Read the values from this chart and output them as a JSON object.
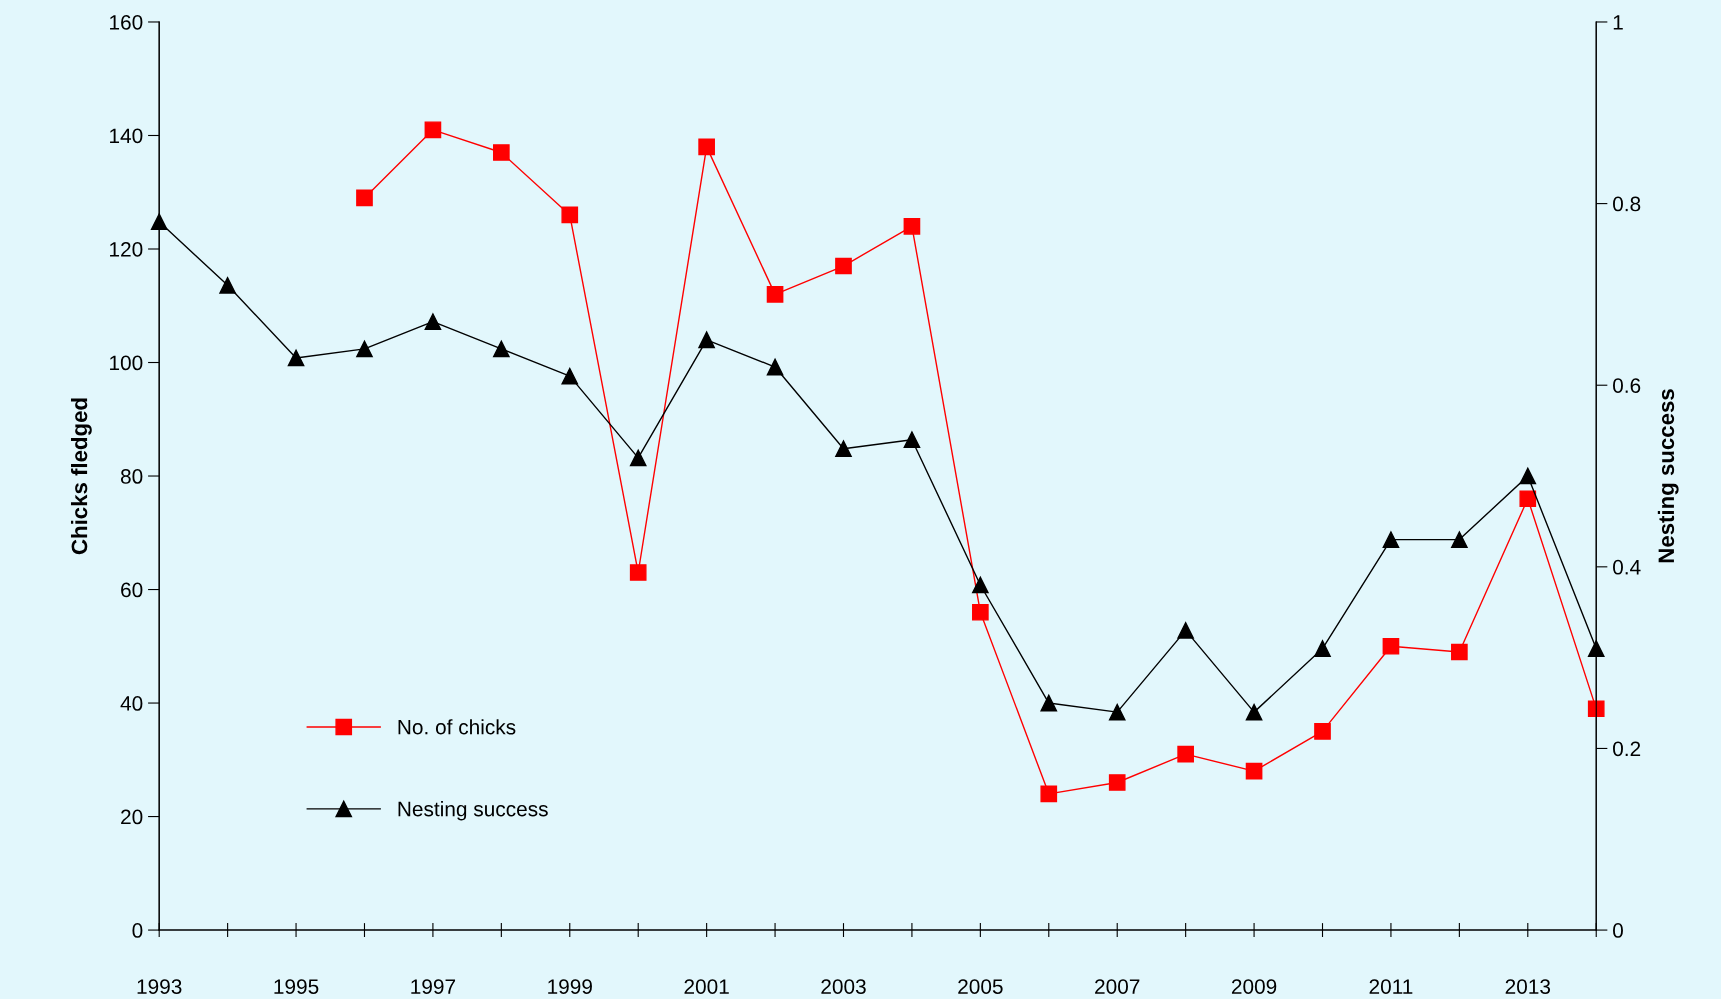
{
  "chart_data": {
    "type": "line",
    "ylabel": "Chicks fledged",
    "y2label": "Nesting success",
    "x": [
      1993,
      1994,
      1995,
      1996,
      1997,
      1998,
      1999,
      2000,
      2001,
      2002,
      2003,
      2004,
      2005,
      2006,
      2007,
      2008,
      2009,
      2010,
      2011,
      2012,
      2013,
      2014
    ],
    "series": [
      {
        "name": "No. of chicks",
        "color": "#ff0000",
        "marker": "square",
        "values": [
          null,
          null,
          null,
          129,
          141,
          137,
          126,
          63,
          138,
          112,
          117,
          124,
          56,
          24,
          26,
          31,
          28,
          35,
          50,
          49,
          76,
          39
        ]
      },
      {
        "name": "Nesting success",
        "color": "#000000",
        "marker": "triangle",
        "axis": "y2",
        "values": [
          0.78,
          0.71,
          0.63,
          0.64,
          0.67,
          0.64,
          0.61,
          0.52,
          0.65,
          0.62,
          0.53,
          0.54,
          0.38,
          0.25,
          0.24,
          0.33,
          0.24,
          0.31,
          0.43,
          0.43,
          0.5,
          0.31
        ]
      }
    ],
    "xlim": [
      1993,
      2014
    ],
    "xticks": [
      1993,
      {
        "value": 1994,
        "label": null
      },
      1995,
      {
        "value": 1996,
        "label": null
      },
      1997,
      {
        "value": 1998,
        "label": null
      },
      1999,
      {
        "value": 2000,
        "label": null
      },
      2001,
      {
        "value": 2002,
        "label": null
      },
      2003,
      {
        "value": 2004,
        "label": null
      },
      2005,
      {
        "value": 2006,
        "label": null
      },
      2007,
      {
        "value": 2008,
        "label": null
      },
      2009,
      {
        "value": 2010,
        "label": null
      },
      2011,
      {
        "value": 2012,
        "label": null
      },
      2013,
      {
        "value": 2014,
        "label": null
      }
    ],
    "ylim": [
      0,
      160
    ],
    "yticks": [
      0,
      20,
      40,
      60,
      80,
      100,
      120,
      140,
      160
    ],
    "y2lim": [
      0,
      1
    ],
    "y2ticks": [
      0,
      0.2,
      0.4,
      0.6,
      0.8,
      1
    ],
    "grid": false,
    "legend": "bottom left",
    "line_style": "solid"
  }
}
